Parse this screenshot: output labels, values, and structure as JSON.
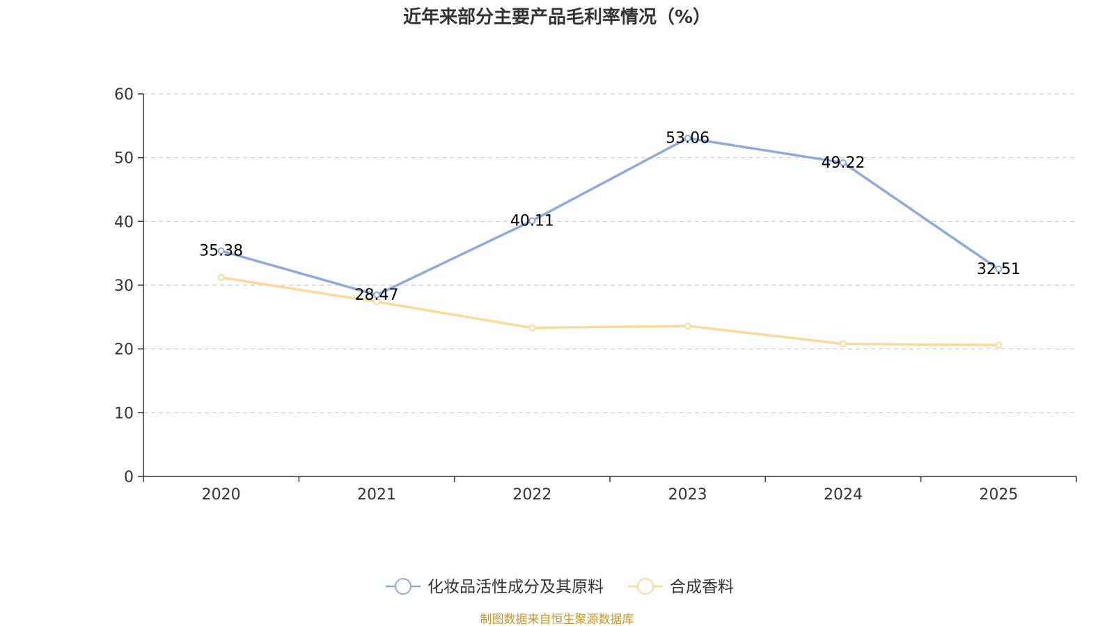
{
  "chart_data": {
    "type": "line",
    "title": "近年来部分主要产品毛利率情况（%）",
    "categories": [
      "2020",
      "2021",
      "2022",
      "2023",
      "2024",
      "2025"
    ],
    "ylim": [
      0,
      60
    ],
    "yticks": [
      0,
      10,
      20,
      30,
      40,
      50,
      60
    ],
    "grid": true,
    "legend_position": "bottom",
    "series": [
      {
        "name": "化妆品活性成分及其原料",
        "values": [
          35.38,
          28.47,
          40.11,
          53.06,
          49.22,
          32.51
        ],
        "labels": [
          "35.38",
          "28.47",
          "40.11",
          "53.06",
          "49.22",
          "32.51"
        ],
        "color": "#8eaadb",
        "show_labels": true
      },
      {
        "name": "合成香料",
        "values": [
          31.2,
          27.4,
          23.3,
          23.6,
          20.8,
          20.6
        ],
        "color": "#fcd99a",
        "show_labels": false
      }
    ]
  },
  "source": {
    "text": "制图数据来自恒生聚源数据库",
    "color": "#c9962b"
  }
}
